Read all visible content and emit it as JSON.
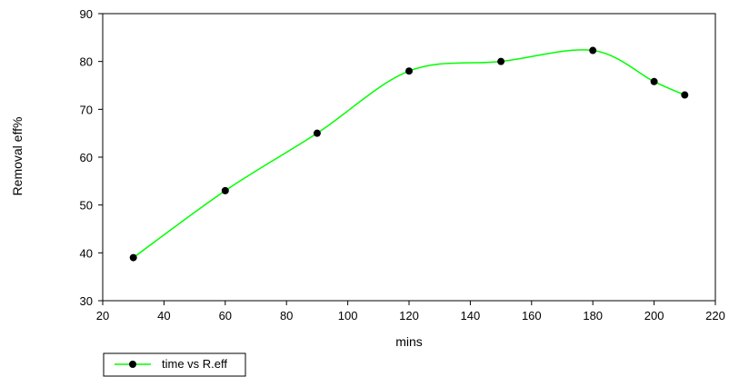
{
  "chart_data": {
    "type": "line",
    "title": "",
    "xlabel": "mins",
    "ylabel": "Removal eff%",
    "xlim": [
      20,
      220
    ],
    "ylim": [
      30,
      90
    ],
    "x_ticks": [
      20,
      40,
      60,
      80,
      100,
      120,
      140,
      160,
      180,
      200,
      220
    ],
    "y_ticks": [
      30,
      40,
      50,
      60,
      70,
      80,
      90
    ],
    "grid": false,
    "legend_position": "bottom-left",
    "series": [
      {
        "name": "time vs R.eff",
        "line_color": "#00ff00",
        "marker_color": "#000000",
        "x": [
          30,
          60,
          90,
          120,
          150,
          180,
          200,
          210
        ],
        "y": [
          39,
          53,
          65,
          78,
          80,
          82.3,
          75.8,
          73
        ]
      }
    ]
  }
}
